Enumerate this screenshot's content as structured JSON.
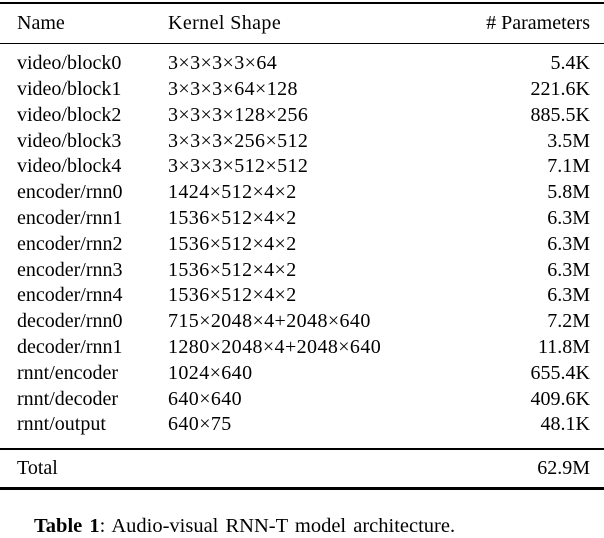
{
  "table": {
    "columns": [
      "Name",
      "Kernel Shape",
      "# Parameters"
    ],
    "rows": [
      {
        "name": "video/block0",
        "kernel": "3×3×3×3×64",
        "params": "5.4K"
      },
      {
        "name": "video/block1",
        "kernel": "3×3×3×64×128",
        "params": "221.6K"
      },
      {
        "name": "video/block2",
        "kernel": "3×3×3×128×256",
        "params": "885.5K"
      },
      {
        "name": "video/block3",
        "kernel": "3×3×3×256×512",
        "params": "3.5M"
      },
      {
        "name": "video/block4",
        "kernel": "3×3×3×512×512",
        "params": "7.1M"
      },
      {
        "name": "encoder/rnn0",
        "kernel": "1424×512×4×2",
        "params": "5.8M"
      },
      {
        "name": "encoder/rnn1",
        "kernel": "1536×512×4×2",
        "params": "6.3M"
      },
      {
        "name": "encoder/rnn2",
        "kernel": "1536×512×4×2",
        "params": "6.3M"
      },
      {
        "name": "encoder/rnn3",
        "kernel": "1536×512×4×2",
        "params": "6.3M"
      },
      {
        "name": "encoder/rnn4",
        "kernel": "1536×512×4×2",
        "params": "6.3M"
      },
      {
        "name": "decoder/rnn0",
        "kernel": "715×2048×4+2048×640",
        "params": "7.2M"
      },
      {
        "name": "decoder/rnn1",
        "kernel": "1280×2048×4+2048×640",
        "params": "11.8M"
      },
      {
        "name": "rnnt/encoder",
        "kernel": "1024×640",
        "params": "655.4K"
      },
      {
        "name": "rnnt/decoder",
        "kernel": "640×640",
        "params": "409.6K"
      },
      {
        "name": "rnnt/output",
        "kernel": "640×75",
        "params": "48.1K"
      }
    ],
    "total": {
      "label": "Total",
      "params": "62.9M"
    }
  },
  "caption": {
    "label": "Table 1",
    "text": ": Audio-visual RNN-T model architecture."
  },
  "colors": {
    "text": "#000000",
    "background": "#ffffff",
    "rule": "#000000"
  }
}
